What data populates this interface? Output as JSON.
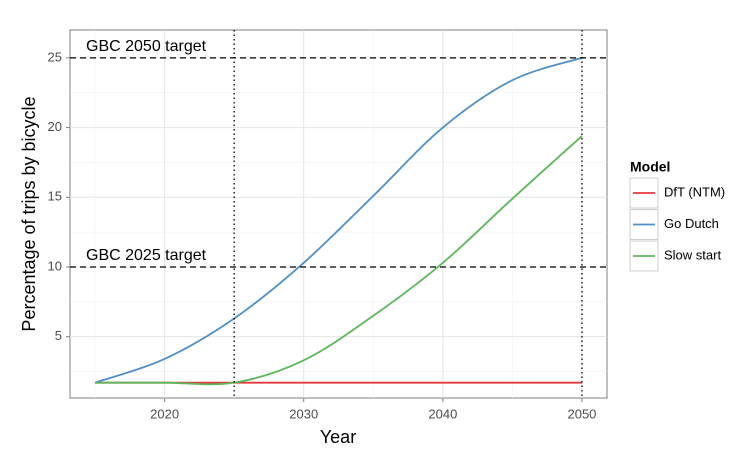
{
  "chart_data": {
    "type": "line",
    "x_label": "Year",
    "y_label": "Percentage of trips by bicycle",
    "x": [
      2015,
      2020,
      2025,
      2030,
      2035,
      2040,
      2045,
      2050
    ],
    "series": [
      {
        "name": "DfT (NTM)",
        "color": "#e5383b",
        "values": [
          1.7,
          1.7,
          1.7,
          1.7,
          1.7,
          1.7,
          1.7,
          1.7
        ]
      },
      {
        "name": "Go Dutch",
        "color": "#4f8fc6",
        "values": [
          1.7,
          3.4,
          6.3,
          10.3,
          15.1,
          20.0,
          23.4,
          25.0
        ]
      },
      {
        "name": "Slow start",
        "color": "#5cb85a",
        "values": [
          1.7,
          1.7,
          1.7,
          3.3,
          6.5,
          10.3,
          14.9,
          19.4
        ]
      }
    ],
    "xlim": [
      2013.2,
      2051.8
    ],
    "ylim": [
      0.6,
      27.0
    ],
    "xticks": [
      2020,
      2030,
      2040,
      2050
    ],
    "yticks": [
      5,
      10,
      15,
      20,
      25
    ],
    "grid": true,
    "reference_lines": [
      {
        "axis": "y",
        "value": 25,
        "label": "GBC 2050 target"
      },
      {
        "axis": "y",
        "value": 10,
        "label": "GBC 2025 target"
      },
      {
        "axis": "x",
        "value": 2025
      },
      {
        "axis": "x",
        "value": 2050
      }
    ],
    "legend_title": "Model",
    "legend_position": "right"
  }
}
